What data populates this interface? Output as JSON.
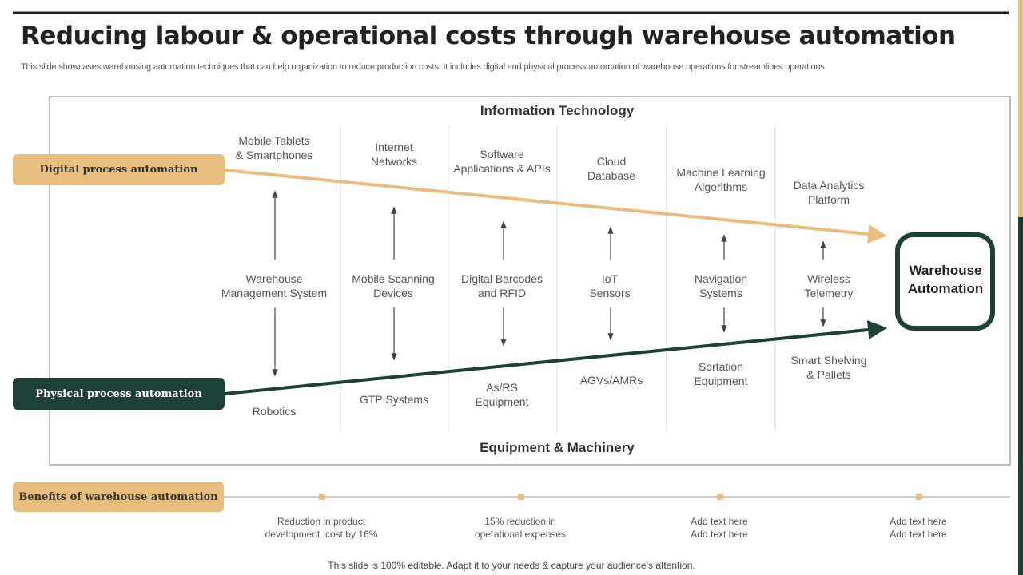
{
  "title": "Reducing labour & operational costs through warehouse automation",
  "subtitle": "This slide showcases warehousing automation techniques that can help organization to reduce production costs. It includes digital and physical process automation of warehouse operations for streamlines operations",
  "frame": {
    "top_label": "Information Technology",
    "bottom_label": "Equipment & Machinery"
  },
  "left_labels": {
    "digital": "Digital process automation",
    "physical": "Physical process automation"
  },
  "target": "Warehouse\nAutomation",
  "columns": [
    {
      "top": "Mobile Tablets\n& Smartphones",
      "middle": "Warehouse\nManagement System",
      "bottom": "Robotics"
    },
    {
      "top": "Internet\nNetworks",
      "middle": "Mobile Scanning\nDevices",
      "bottom": "GTP Systems"
    },
    {
      "top": "Software\nApplications & APIs",
      "middle": "Digital Barcodes\nand RFID",
      "bottom": "As/RS\nEquipment"
    },
    {
      "top": "Cloud\nDatabase",
      "middle": "IoT\nSensors",
      "bottom": "AGVs/AMRs"
    },
    {
      "top": "Machine Learning\nAlgorithms",
      "middle": "Navigation\nSystems",
      "bottom": "Sortation\nEquipment"
    },
    {
      "top": "Data Analytics\nPlatform",
      "middle": "Wireless\nTelemetry",
      "bottom": "Smart Shelving\n& Pallets"
    }
  ],
  "benefits": {
    "label": "Benefits of warehouse automation",
    "items": [
      "Reduction in product\ndevelopment  cost by 16%",
      "15% reduction in\noperational expenses",
      "Add text here\nAdd text here",
      "Add text here\nAdd text here"
    ]
  },
  "footer": "This slide is 100% editable. Adapt it to your needs & capture your audience’s attention."
}
